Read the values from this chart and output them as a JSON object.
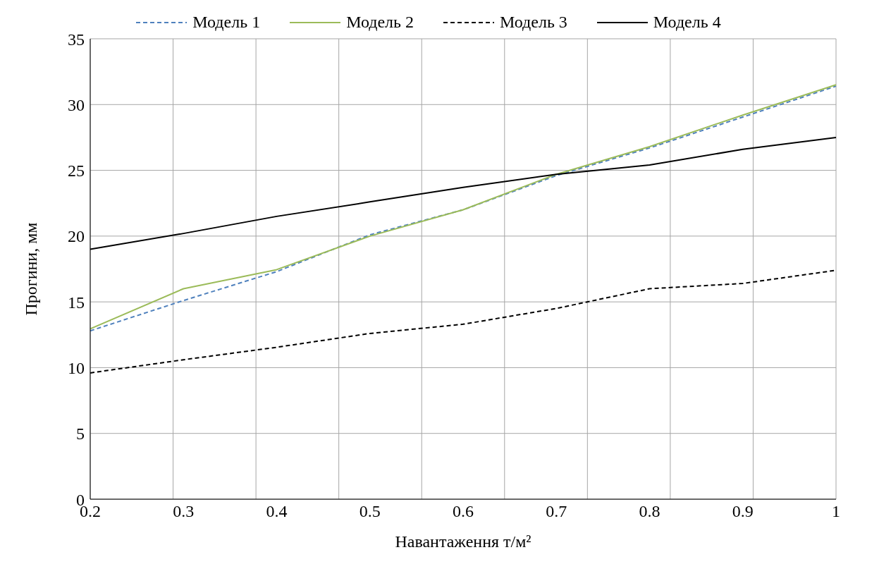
{
  "chart_data": {
    "type": "line",
    "xlabel": "Навантаження т/м²",
    "ylabel": "Прогини, мм",
    "categories": [
      "0.2",
      "0.3",
      "0.4",
      "0.5",
      "0.6",
      "0.7",
      "0.8",
      "0.9",
      "1"
    ],
    "ylim": [
      0,
      35
    ],
    "yticks": [
      0,
      5,
      10,
      15,
      20,
      25,
      30,
      35
    ],
    "grid": true,
    "legend": "top",
    "marker": "none",
    "series": [
      {
        "name": "Модель 1",
        "color": "#4f81bd",
        "line_style": "dashed",
        "values": [
          12.8,
          15.1,
          17.3,
          20.1,
          22.0,
          24.6,
          26.7,
          29.05,
          31.4
        ]
      },
      {
        "name": "Модель 2",
        "color": "#9bbb59",
        "line_style": "solid",
        "values": [
          12.95,
          16.0,
          17.45,
          20.0,
          22.0,
          24.7,
          26.8,
          29.2,
          31.5
        ]
      },
      {
        "name": "Модель 3",
        "color": "#000000",
        "line_style": "dashed",
        "values": [
          9.6,
          10.6,
          11.55,
          12.6,
          13.3,
          14.5,
          16.0,
          16.4,
          17.4
        ]
      },
      {
        "name": "Модель 4",
        "color": "#000000",
        "line_style": "solid",
        "values": [
          19.0,
          20.2,
          21.5,
          22.6,
          23.7,
          24.7,
          25.4,
          26.6,
          27.5
        ]
      }
    ]
  }
}
